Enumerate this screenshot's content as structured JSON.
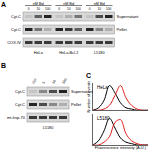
{
  "panel_a": {
    "label": "A",
    "header": "nM Bid",
    "groups": [
      {
        "name": "HeLa",
        "lanes": [
          "0",
          "10",
          "100"
        ]
      },
      {
        "name": "HeLa-Bcl-2",
        "lanes": [
          "0",
          "10",
          "100"
        ]
      },
      {
        "name": "L5180",
        "lanes": [
          "0",
          "10",
          "100"
        ]
      }
    ],
    "rows": [
      {
        "label": "Cyt.C",
        "fraction": "Supernatant",
        "bands": [
          0.1,
          0.6,
          0.9,
          0.1,
          0.2,
          0.5,
          0.1,
          0.7,
          0.9
        ]
      },
      {
        "label": "Cyt.C",
        "fraction": "Pellet",
        "bands": [
          0.9,
          0.5,
          0.2,
          0.9,
          0.8,
          0.6,
          0.9,
          0.4,
          0.2
        ]
      },
      {
        "label": "COX-IV",
        "fraction": null,
        "bands": [
          0.8,
          0.8,
          0.8,
          0.8,
          0.8,
          0.8,
          0.8,
          0.8,
          0.8
        ]
      }
    ]
  },
  "panel_b": {
    "label": "B",
    "group": "L5180",
    "lanes": [
      "Ctrl",
      "5",
      "50",
      "500"
    ],
    "rows": [
      {
        "label": "Cyt.C",
        "fraction": "Supernatant",
        "bands": [
          0.1,
          0.4,
          0.7,
          0.9
        ]
      },
      {
        "label": "Cyt.C",
        "fraction": "Pellet",
        "bands": [
          0.9,
          0.7,
          0.4,
          0.2
        ]
      },
      {
        "label": "mt-hsp-70",
        "fraction": null,
        "bands": [
          0.8,
          0.8,
          0.8,
          0.8
        ]
      }
    ]
  },
  "panel_c_label": "C",
  "chart_data": [
    {
      "type": "line",
      "title": "HeLa",
      "y_label": "Number of events",
      "x": [
        0,
        1,
        2,
        3,
        4,
        5,
        6,
        7,
        8,
        9,
        10
      ],
      "xlim": [
        0,
        10
      ],
      "ylim": [
        0,
        22
      ],
      "tick_labels": false,
      "series": [
        {
          "color": "#000000",
          "values": [
            0,
            2,
            8,
            20,
            14,
            6,
            2,
            1,
            0,
            0,
            0
          ]
        },
        {
          "color": "#e0201c",
          "values": [
            0,
            0,
            1,
            4,
            12,
            20,
            10,
            4,
            1,
            0,
            0
          ]
        }
      ]
    },
    {
      "type": "line",
      "title": "L5180",
      "x_label": "Fluorescence intensity (A.U.)",
      "x": [
        0,
        1,
        2,
        3,
        4,
        5,
        6,
        7,
        8,
        9,
        10
      ],
      "xlim": [
        0,
        10
      ],
      "ylim": [
        0,
        22
      ],
      "tick_labels": false,
      "series": [
        {
          "color": "#000000",
          "values": [
            0,
            3,
            10,
            19,
            12,
            5,
            2,
            1,
            0,
            0,
            0
          ]
        },
        {
          "color": "#e0201c",
          "values": [
            0,
            0,
            2,
            6,
            16,
            18,
            8,
            3,
            1,
            0,
            0
          ]
        }
      ]
    }
  ]
}
